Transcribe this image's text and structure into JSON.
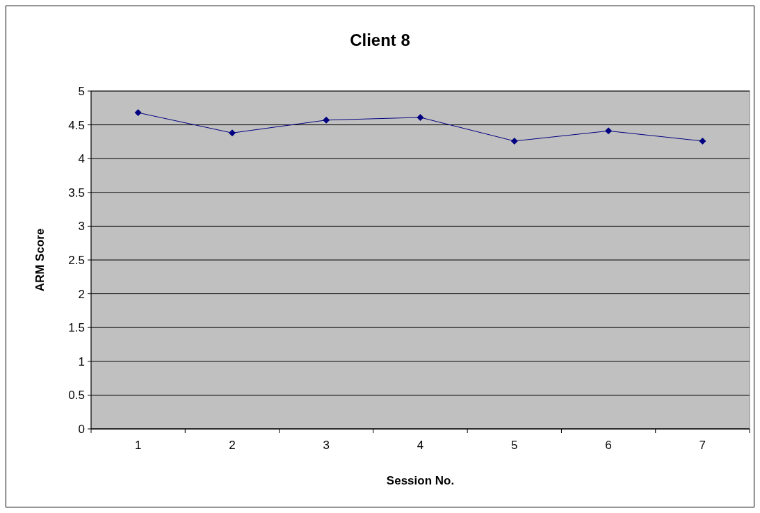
{
  "chart_data": {
    "type": "line",
    "title": "Client 8",
    "xlabel": "Session No.",
    "ylabel": "ARM Score",
    "categories": [
      "1",
      "2",
      "3",
      "4",
      "5",
      "6",
      "7"
    ],
    "series": [
      {
        "color": "#000080",
        "values": [
          4.68,
          4.38,
          4.57,
          4.61,
          4.26,
          4.41,
          4.26
        ]
      }
    ],
    "ylim": [
      0,
      5
    ],
    "yticks": [
      0,
      0.5,
      1,
      1.5,
      2,
      2.5,
      3,
      3.5,
      4,
      4.5,
      5
    ],
    "grid": "y",
    "marker": "diamond"
  }
}
